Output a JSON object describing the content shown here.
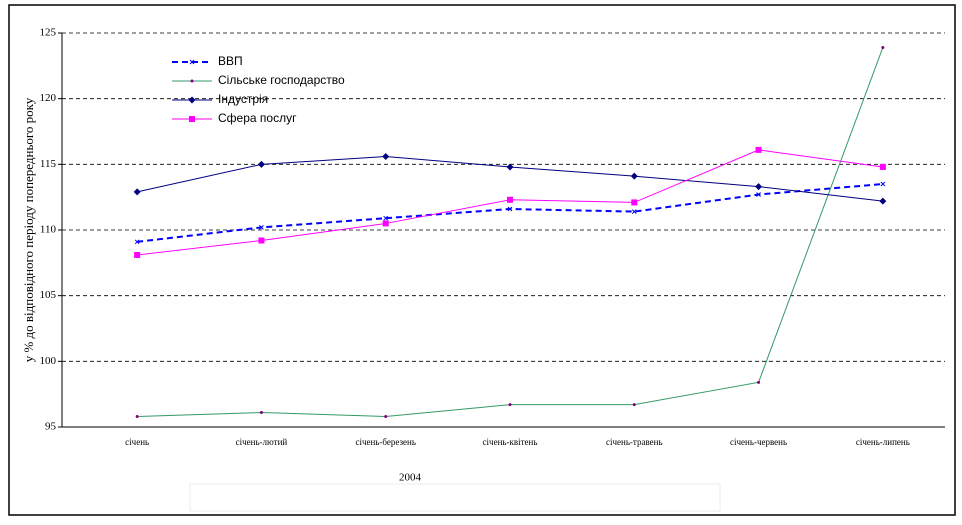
{
  "chart_data": {
    "type": "line",
    "y_label": "у % до відповідного періоду попереднього року",
    "x_label": "2004",
    "categories": [
      "січень",
      "січень-лютий",
      "січень-березень",
      "січень-квітень",
      "січень-травень",
      "січень-червень",
      "січень-липень"
    ],
    "series": [
      {
        "name": "ВВП",
        "color": "#0000ff",
        "values": [
          109.1,
          110.2,
          110.9,
          111.6,
          111.4,
          112.7,
          113.5
        ]
      },
      {
        "name": "Сільське господарство",
        "color": "#339966",
        "values": [
          95.8,
          96.1,
          95.8,
          96.7,
          96.7,
          98.4,
          123.9
        ]
      },
      {
        "name": "Індустрія",
        "color": "#000080",
        "values": [
          112.9,
          115.0,
          115.6,
          114.8,
          114.1,
          113.3,
          112.2
        ]
      },
      {
        "name": "Сфера послуг",
        "color": "#ff00ff",
        "values": [
          108.1,
          109.2,
          110.5,
          112.3,
          112.1,
          116.1,
          114.8
        ]
      }
    ],
    "ylim": [
      95,
      125
    ],
    "yticks": [
      95,
      100,
      105,
      110,
      115,
      120,
      125
    ],
    "grid": true,
    "legend": "upper left"
  }
}
